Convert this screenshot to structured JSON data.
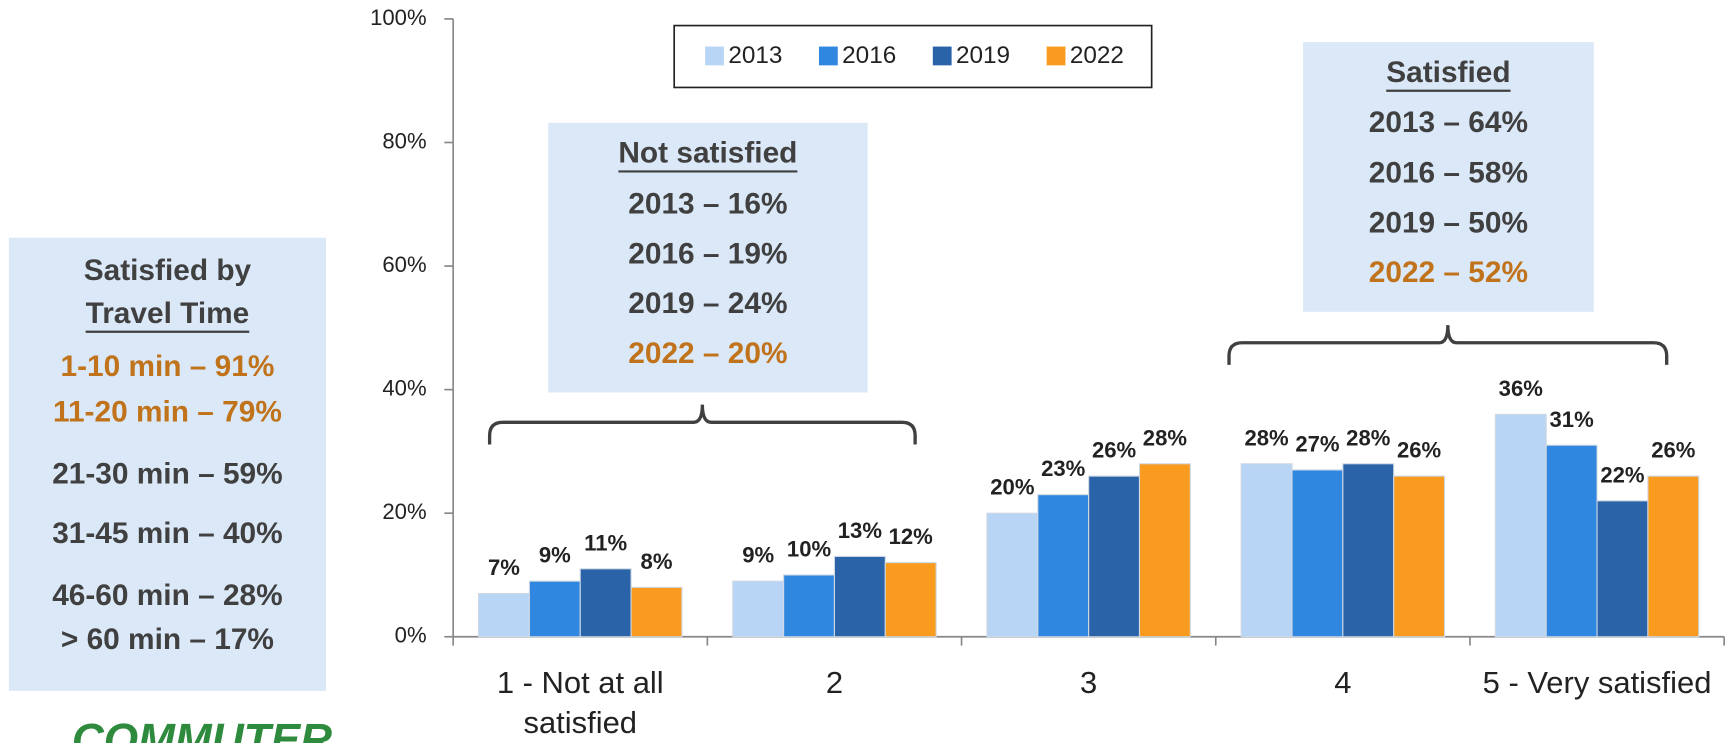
{
  "chart_data": {
    "type": "bar",
    "categories": [
      "1 - Not at all satisfied",
      "2",
      "3",
      "4",
      "5 - Very satisfied"
    ],
    "series": [
      {
        "name": "2013",
        "color": "#b8d5f6",
        "values": [
          7,
          9,
          20,
          28,
          36
        ],
        "value_labels": [
          "7%",
          "9%",
          "20%",
          "28%",
          "36%"
        ]
      },
      {
        "name": "2016",
        "color": "#3087e0",
        "values": [
          9,
          10,
          23,
          27,
          31
        ],
        "value_labels": [
          "9%",
          "10%",
          "23%",
          "27%",
          "31%"
        ]
      },
      {
        "name": "2019",
        "color": "#2b63a9",
        "values": [
          11,
          13,
          26,
          28,
          22
        ],
        "value_labels": [
          "11%",
          "13%",
          "26%",
          "28%",
          "22%"
        ]
      },
      {
        "name": "2022",
        "color": "#f89b1f",
        "values": [
          8,
          12,
          28,
          26,
          26
        ],
        "value_labels": [
          "8%",
          "12%",
          "28%",
          "26%",
          "26%"
        ]
      }
    ],
    "ylim": [
      0,
      100
    ],
    "yticks": [
      {
        "value": 0,
        "label": "0%"
      },
      {
        "value": 20,
        "label": "20%"
      },
      {
        "value": 40,
        "label": "40%"
      },
      {
        "value": 60,
        "label": "60%"
      },
      {
        "value": 80,
        "label": "80%"
      },
      {
        "value": 100,
        "label": "100%"
      }
    ],
    "legend": "top",
    "annotations": [
      {
        "title": [
          "Not satisfied"
        ],
        "lines": [
          {
            "text": "2013 – 16%",
            "color": "#404040"
          },
          {
            "text": "2016 – 19%",
            "color": "#404040"
          },
          {
            "text": "2019 – 24%",
            "color": "#404040"
          },
          {
            "text": "2022 – 20%",
            "color": "#c0731a"
          }
        ]
      },
      {
        "title": [
          "Satisfied"
        ],
        "lines": [
          {
            "text": "2013 – 64%",
            "color": "#404040"
          },
          {
            "text": "2016 – 58%",
            "color": "#404040"
          },
          {
            "text": "2019 – 50%",
            "color": "#404040"
          },
          {
            "text": "2022 – 52%",
            "color": "#c0731a"
          }
        ]
      },
      {
        "title": [
          "Satisfied by",
          "Travel Time"
        ],
        "lines": [
          {
            "text": "1-10 min – 91%",
            "color": "#c0731a"
          },
          {
            "text": "11-20 min – 79%",
            "color": "#c0731a"
          },
          {
            "text": "21-30 min – 59%",
            "color": "#404040"
          },
          {
            "text": "31-45 min – 40%",
            "color": "#404040"
          },
          {
            "text": "46-60 min – 28%",
            "color": "#404040"
          },
          {
            "text": "> 60 min – 17%",
            "color": "#404040"
          }
        ]
      }
    ],
    "logo": "COMMUTER"
  }
}
